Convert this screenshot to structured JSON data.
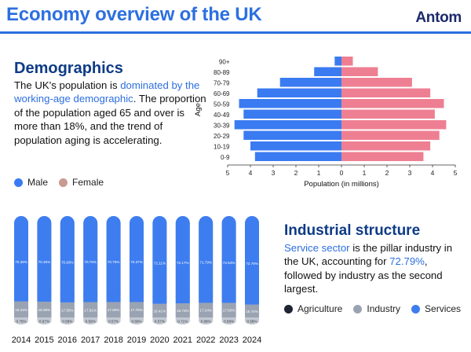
{
  "header": {
    "title": "Economy overview of the UK",
    "brand": "Antom"
  },
  "demographics": {
    "heading": "Demographics",
    "text_1": "The UK's population is ",
    "text_highlight": "dominated by the working-age demographic",
    "text_2": ". The proportion of the population aged 65 and over is more than 18%, and the trend of population aging is accelerating."
  },
  "industry": {
    "heading": "Industrial structure",
    "text_highlight_1": "Service sector",
    "text_1": " is the pillar industry in the UK, accounting for ",
    "text_highlight_2": "72.79%",
    "text_2": ", followed by industry as the second largest."
  },
  "colors": {
    "male": "#3a7bf2",
    "female": "#ee7f92",
    "services": "#3d7df0",
    "industry": "#9aa3b2",
    "agriculture": "#1e2433",
    "accent": "#2d6fe0"
  },
  "chart_data": [
    {
      "type": "bar",
      "orientation": "horizontal",
      "subtype": "population-pyramid",
      "title": "",
      "categories": [
        "90+",
        "80-89",
        "70-79",
        "60-69",
        "50-59",
        "40-49",
        "30-39",
        "20-29",
        "10-19",
        "0-9"
      ],
      "series": [
        {
          "name": "Male",
          "values": [
            0.3,
            1.2,
            2.7,
            3.7,
            4.5,
            4.3,
            4.7,
            4.3,
            4.0,
            3.8
          ]
        },
        {
          "name": "Female",
          "values": [
            0.5,
            1.6,
            3.1,
            3.9,
            4.5,
            4.1,
            4.6,
            4.3,
            3.9,
            3.6
          ]
        }
      ],
      "xlabel": "Population (in millions)",
      "ylabel": "Age",
      "xlim": [
        -5,
        5
      ],
      "xticks": [
        "5",
        "4",
        "3",
        "2",
        "1",
        "0",
        "1",
        "2",
        "3",
        "4",
        "5"
      ],
      "legend": "bottom-left",
      "grid": false
    },
    {
      "type": "bar",
      "orientation": "vertical",
      "subtype": "stacked-100",
      "title": "",
      "categories": [
        "2014",
        "2015",
        "2016",
        "2017",
        "2018",
        "2019",
        "2020",
        "2021",
        "2022",
        "2023",
        "2024"
      ],
      "series": [
        {
          "name": "Services",
          "values": [
            70.39,
            70.45,
            70.93,
            70.76,
            70.75,
            70.37,
            72.11,
            72.17,
            71.79,
            72.53,
            72.79
          ],
          "labels": [
            "70.39%",
            "70.45%",
            "70.93%",
            "70.76%",
            "70.75%",
            "70.37%",
            "72.11%",
            "72.17%",
            "71.79%",
            "72.53%",
            "72.79%"
          ]
        },
        {
          "name": "Industry",
          "values": [
            18.23,
            18.09,
            17.55,
            17.81,
            17.9,
            17.76,
            16.41,
            16.73,
            17.24,
            17.5,
            15.74
          ],
          "labels": [
            "18.23%",
            "18.09%",
            "17.55%",
            "17.81%",
            "17.90%",
            "17.76%",
            "16.41%",
            "16.73%",
            "17.24%",
            "17.50%",
            "15.74%"
          ]
        },
        {
          "name": "Agriculture",
          "values": [
            0.75,
            0.67,
            0.58,
            0.59,
            0.57,
            0.6,
            0.57,
            0.71,
            0.68,
            0.58,
            0.58
          ],
          "labels": [
            "0.75%",
            "0.67%",
            "0.58%",
            "0.59%",
            "0.57%",
            "0.60%",
            "0.57%",
            "0.71%",
            "0.68%",
            "0.58%",
            "0.58%"
          ]
        }
      ],
      "legend": "bottom-right",
      "grid": false
    }
  ]
}
